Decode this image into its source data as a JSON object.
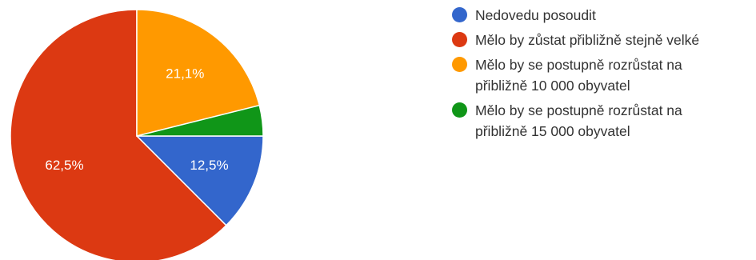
{
  "chart_data": {
    "type": "pie",
    "slices": [
      {
        "label": "Nedovedu posoudit",
        "value": 12.5,
        "display": "12,5%",
        "color": "#3366cc",
        "show_label": true
      },
      {
        "label": "Mělo by zůstat přibližně stejně velké",
        "value": 62.5,
        "display": "62,5%",
        "color": "#dc3912",
        "show_label": true
      },
      {
        "label": "Mělo by se postupně rozrůstat na\npřibližně 10 000 obyvatel",
        "value": 21.1,
        "display": "21,1%",
        "color": "#ff9900",
        "show_label": true
      },
      {
        "label": "Mělo by se postupně rozrůstat na\npřibližně 15 000 obyvatel",
        "value": 3.9,
        "display": "",
        "color": "#109618",
        "show_label": false
      }
    ],
    "legend_position": "right"
  }
}
